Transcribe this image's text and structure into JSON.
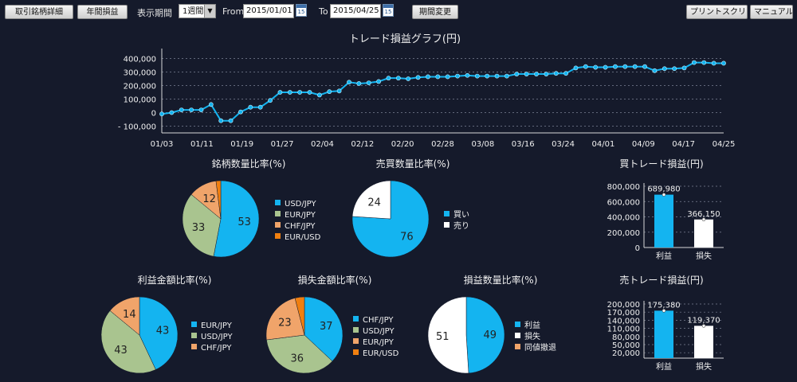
{
  "toolbar": {
    "brand_detail": "取引銘柄詳細",
    "annual_pnl": "年間損益",
    "period_label": "表示期間",
    "period_value": "1週間",
    "from_label": "From",
    "from_value": "2015/01/01",
    "to_label": "To",
    "to_value": "2015/04/25",
    "calendar_day": "15",
    "change_period": "期間変更",
    "print_screen": "プリントスクリーン",
    "manual": "マニュアルへ"
  },
  "colors": {
    "blue": "#14b4f0",
    "green": "#a9c48f",
    "orange": "#f0a46a",
    "darkorange": "#f07f10",
    "white": "#ffffff",
    "bg": "#151a2b"
  },
  "chart_data": [
    {
      "id": "trade_pnl",
      "type": "line",
      "title": "トレード損益グラフ(円)",
      "ylim": [
        -150000,
        450000
      ],
      "yticks": [
        400000,
        300000,
        200000,
        100000,
        0,
        -100000
      ],
      "ytick_labels": [
        "400,000",
        "300,000",
        "200,000",
        "100,000",
        "0",
        "- 100,000"
      ],
      "xtick_labels": [
        "01/03",
        "01/11",
        "01/19",
        "01/27",
        "02/04",
        "02/12",
        "02/20",
        "02/28",
        "03/08",
        "03/16",
        "03/24",
        "04/01",
        "04/09",
        "04/17",
        "04/25"
      ],
      "values": [
        -10000,
        0,
        20000,
        20000,
        20000,
        60000,
        -60000,
        -60000,
        5000,
        40000,
        40000,
        90000,
        150000,
        150000,
        150000,
        150000,
        130000,
        155000,
        160000,
        225000,
        215000,
        220000,
        230000,
        255000,
        255000,
        250000,
        260000,
        265000,
        265000,
        265000,
        270000,
        275000,
        270000,
        270000,
        270000,
        270000,
        285000,
        285000,
        285000,
        285000,
        290000,
        290000,
        330000,
        340000,
        335000,
        335000,
        340000,
        340000,
        340000,
        340000,
        310000,
        325000,
        325000,
        330000,
        370000,
        370000,
        365000,
        365000
      ]
    },
    {
      "id": "brand_qty",
      "type": "pie",
      "title": "銘柄数量比率(%)",
      "labels": [
        "USD/JPY",
        "EUR/JPY",
        "CHF/JPY",
        "EUR/USD"
      ],
      "values": [
        53,
        33,
        12,
        2
      ],
      "value_labels": [
        "53",
        "33",
        "12",
        ""
      ],
      "colors": [
        "#14b4f0",
        "#a9c48f",
        "#f0a46a",
        "#f07f10"
      ]
    },
    {
      "id": "buysell_qty",
      "type": "pie",
      "title": "売買数量比率(%)",
      "labels": [
        "買い",
        "売り"
      ],
      "values": [
        76,
        24
      ],
      "value_labels": [
        "76",
        "24"
      ],
      "colors": [
        "#14b4f0",
        "#ffffff"
      ]
    },
    {
      "id": "profit_amount",
      "type": "pie",
      "title": "利益金額比率(%)",
      "labels": [
        "EUR/JPY",
        "USD/JPY",
        "CHF/JPY"
      ],
      "values": [
        43,
        43,
        14
      ],
      "value_labels": [
        "43",
        "43",
        "14"
      ],
      "colors": [
        "#14b4f0",
        "#a9c48f",
        "#f0a46a"
      ]
    },
    {
      "id": "loss_amount",
      "type": "pie",
      "title": "損失金額比率(%)",
      "labels": [
        "CHF/JPY",
        "USD/JPY",
        "EUR/JPY",
        "EUR/USD"
      ],
      "values": [
        37,
        36,
        23,
        4
      ],
      "value_labels": [
        "37",
        "36",
        "23",
        ""
      ],
      "colors": [
        "#14b4f0",
        "#a9c48f",
        "#f0a46a",
        "#f07f10"
      ]
    },
    {
      "id": "pnl_qty",
      "type": "pie",
      "title": "損益数量比率(%)",
      "labels": [
        "利益",
        "損失",
        "同値撤退"
      ],
      "values": [
        49,
        51,
        0
      ],
      "value_labels": [
        "49",
        "51",
        ""
      ],
      "colors": [
        "#14b4f0",
        "#ffffff",
        "#f0a46a"
      ]
    },
    {
      "id": "buy_trade_pnl",
      "type": "bar",
      "title": "買トレード損益(円)",
      "categories": [
        "利益",
        "損失"
      ],
      "values": [
        689980,
        366150
      ],
      "value_labels": [
        "689,980",
        "366,150"
      ],
      "colors": [
        "#14b4f0",
        "#ffffff"
      ],
      "ylim": [
        0,
        800000
      ],
      "yticks": [
        0,
        200000,
        400000,
        600000,
        800000
      ],
      "ytick_labels": [
        "0",
        "200,000",
        "400,000",
        "600,000",
        "800,000"
      ]
    },
    {
      "id": "sell_trade_pnl",
      "type": "bar",
      "title": "売トレード損益(円)",
      "categories": [
        "利益",
        "損失"
      ],
      "values": [
        175380,
        119370
      ],
      "value_labels": [
        "175,380",
        "119,370"
      ],
      "colors": [
        "#14b4f0",
        "#ffffff"
      ],
      "ylim": [
        0,
        200000
      ],
      "yticks": [
        20000,
        50000,
        80000,
        110000,
        140000,
        170000,
        200000
      ],
      "ytick_labels": [
        "20,000",
        "50,000",
        "80,000",
        "110,000",
        "140,000",
        "170,000",
        "200,000"
      ]
    }
  ]
}
